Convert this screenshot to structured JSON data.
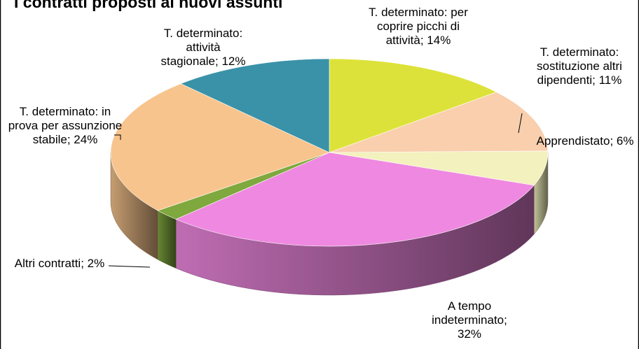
{
  "chart_data": {
    "type": "pie3d",
    "title": "I contratti proposti ai nuovi assunti",
    "categories": [
      "T. determinato: per coprire picchi di attività",
      "T. determinato: sostituzione altri dipendenti",
      "Apprendistato",
      "A tempo indeterminato",
      "Altri contratti",
      "T. determinato: in prova per assunzione stabile",
      "T. determinato: attività stagionale"
    ],
    "values": [
      14,
      11,
      6,
      32,
      2,
      24,
      12
    ],
    "value_labels": [
      "14%",
      "11%",
      "6%",
      "32%",
      "2%",
      "24%",
      "12%"
    ],
    "label_separator": "; ",
    "colors": [
      "#dde23a",
      "#f9cfae",
      "#f3f1bd",
      "#ef88e0",
      "#7fa83e",
      "#f8c48d",
      "#3a92a8"
    ]
  }
}
